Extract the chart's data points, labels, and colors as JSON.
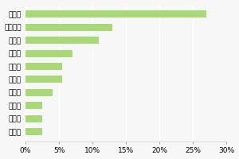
{
  "categories": [
    "静岡県",
    "福岡県",
    "長崎県",
    "京都府",
    "千葉県",
    "大阪府",
    "長野県",
    "北海道",
    "神奈川県",
    "沖縄県"
  ],
  "values": [
    2.5,
    2.5,
    2.5,
    4.0,
    5.5,
    5.5,
    7.0,
    11.0,
    13.0,
    27.0
  ],
  "bar_color": "#a8d878",
  "xlim": [
    0,
    30
  ],
  "xticks": [
    0,
    5,
    10,
    15,
    20,
    25,
    30
  ],
  "background_color": "#f7f7f7",
  "bar_height": 0.55,
  "label_fontsize": 6.5,
  "tick_fontsize": 6.5
}
